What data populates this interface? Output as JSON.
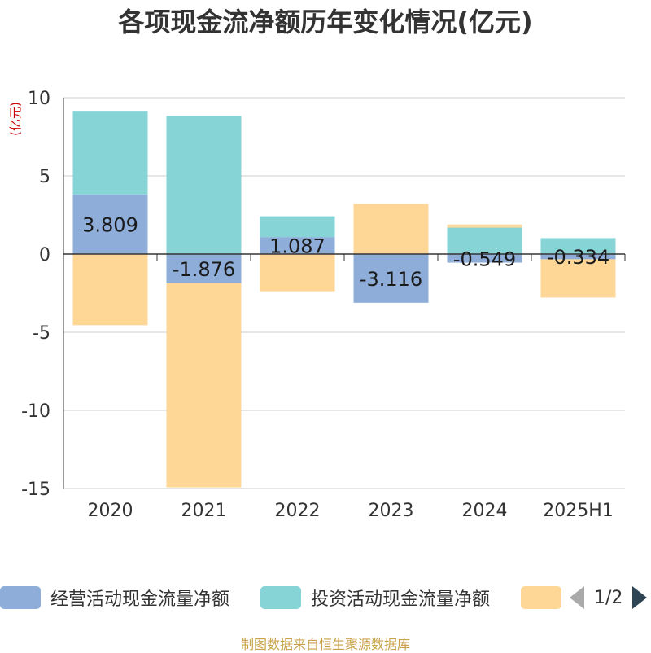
{
  "chart_data": {
    "type": "bar",
    "stacked": true,
    "title": "各项现金流净额历年变化情况(亿元)",
    "ylabel": "(亿元)",
    "ylim": [
      -15,
      10
    ],
    "yticks": [
      10,
      5,
      0,
      -5,
      -10,
      -15
    ],
    "grid": true,
    "legend_position": "bottom",
    "categories": [
      "2020",
      "2021",
      "2022",
      "2023",
      "2024",
      "2025H1"
    ],
    "series": [
      {
        "name": "经营活动现金流量净额",
        "color": "#8eaed9",
        "values": [
          3.809,
          -1.876,
          1.087,
          -3.116,
          -0.549,
          -0.334
        ],
        "labels": [
          "3.809",
          "-1.876",
          "1.087",
          "-3.116",
          "-0.549",
          "-0.334"
        ]
      },
      {
        "name": "投资活动现金流量净额",
        "color": "#87d4d7",
        "values": [
          5.35,
          8.84,
          1.33,
          0,
          1.69,
          1.02
        ]
      },
      {
        "name": "",
        "color": "#fed797",
        "values": [
          -4.55,
          -13.05,
          -2.43,
          3.21,
          0.2,
          -2.45
        ]
      }
    ]
  },
  "legend": {
    "page_indicator": "1/2"
  },
  "source_note": "制图数据来自恒生聚源数据库"
}
